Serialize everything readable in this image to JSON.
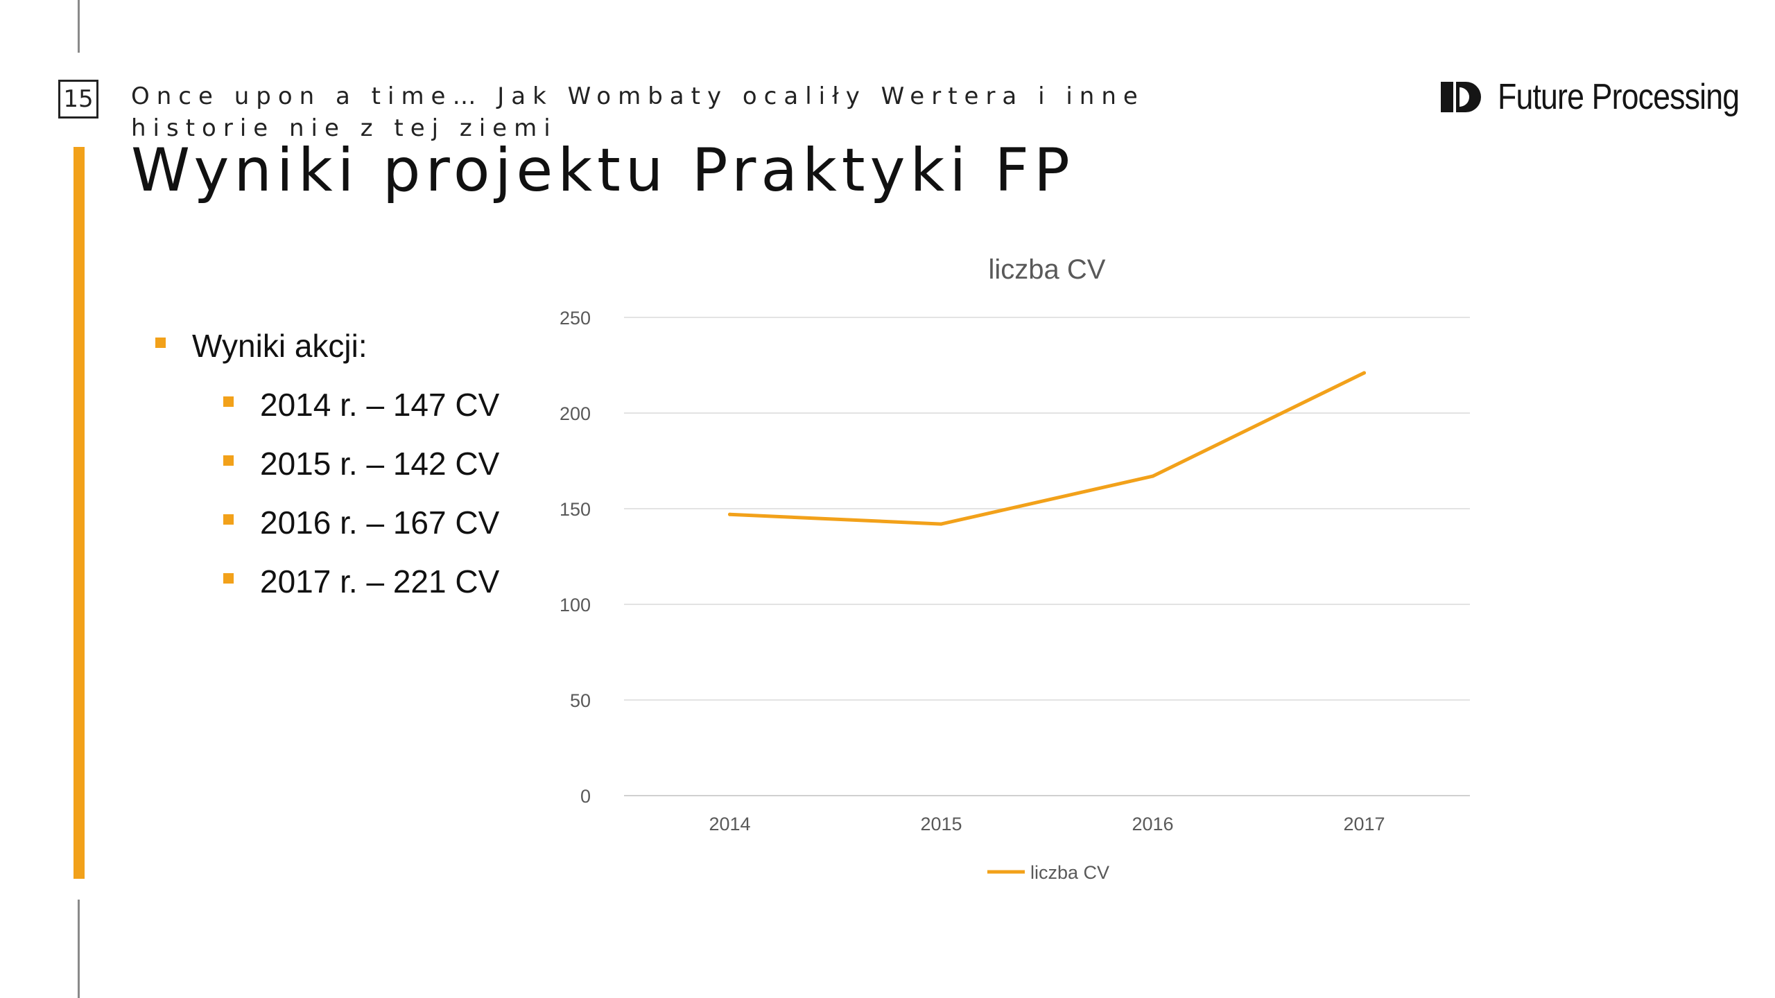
{
  "slide": {
    "page_number": "15",
    "subtitle": "Once upon a time… Jak Wombaty ocaliły Wertera i inne historie nie z tej ziemi",
    "title": "Wyniki projektu Praktyki FP",
    "logo_text": "Future Processing",
    "accent_color": "#f2a11a"
  },
  "bullets": {
    "heading": "Wyniki akcji:",
    "items": [
      "2014 r. – 147 CV",
      "2015 r. – 142 CV",
      "2016 r. – 167 CV",
      "2017 r. – 221 CV"
    ]
  },
  "chart_data": {
    "type": "line",
    "title": "liczba CV",
    "categories": [
      "2014",
      "2015",
      "2016",
      "2017"
    ],
    "series": [
      {
        "name": "liczba CV",
        "values": [
          147,
          142,
          167,
          221
        ],
        "color": "#f2a11a"
      }
    ],
    "y_ticks": [
      0,
      50,
      100,
      150,
      200,
      250
    ],
    "ylim": [
      0,
      250
    ],
    "grid": true,
    "legend": "bottom"
  }
}
